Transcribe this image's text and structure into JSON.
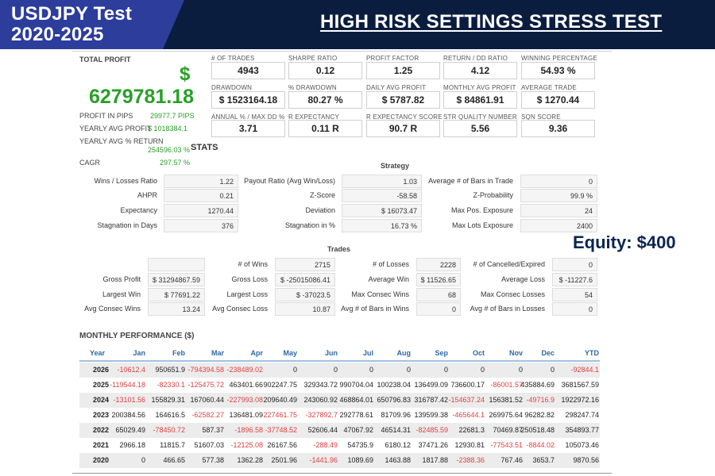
{
  "banner": {
    "tag_line1": "USDJPY Test",
    "tag_line2": "2020-2025",
    "title": "HIGH RISK SETTINGS STRESS TEST"
  },
  "summary": {
    "total_profit_label": "TOTAL PROFIT",
    "currency_symbol": "$",
    "total_profit_value": "6279781.18",
    "profit_in_pips_label": "PROFIT IN PIPS",
    "profit_in_pips_value": "29977.7 PIPS",
    "yearly_avg_profit_label": "YEARLY AVG PROFIT",
    "yearly_avg_profit_value": "$ 1018384.1",
    "yearly_avg_return_label": "YEARLY AVG % RETURN",
    "yearly_avg_return_value": "254596.03 %",
    "cagr_label": "CAGR",
    "cagr_value": "297.57 %",
    "positive_color": "#28a028"
  },
  "metrics": [
    {
      "label": "# OF TRADES",
      "value": "4943"
    },
    {
      "label": "SHARPE RATIO",
      "value": "0.12"
    },
    {
      "label": "PROFIT FACTOR",
      "value": "1.25"
    },
    {
      "label": "RETURN / DD RATIO",
      "value": "4.12"
    },
    {
      "label": "WINNING PERCENTAGE",
      "value": "54.93 %"
    },
    {
      "label": "DRAWDOWN",
      "value": "$ 1523164.18"
    },
    {
      "label": "% DRAWDOWN",
      "value": "80.27 %"
    },
    {
      "label": "DAILY AVG PROFIT",
      "value": "$ 5787.82"
    },
    {
      "label": "MONTHLY AVG PROFIT",
      "value": "$ 84861.91"
    },
    {
      "label": "AVERAGE TRADE",
      "value": "$ 1270.44"
    },
    {
      "label": "ANNUAL % / MAX DD %",
      "value": "3.71"
    },
    {
      "label": "R EXPECTANCY",
      "value": "0.11 R"
    },
    {
      "label": "R EXPECTANCY SCORE",
      "value": "90.7 R"
    },
    {
      "label": "STR QUALITY NUMBER",
      "value": "5.56"
    },
    {
      "label": "SQN SCORE",
      "value": "9.36"
    }
  ],
  "stats": {
    "title": "STATS",
    "strategy_title": "Strategy",
    "strategy_rows": [
      {
        "label": "Wins / Losses Ratio",
        "value": "1.22"
      },
      {
        "label": "Payout Ratio (Avg Win/Loss)",
        "value": "1.03"
      },
      {
        "label": "Average # of Bars in Trade",
        "value": "0"
      },
      {
        "label": "AHPR",
        "value": "0.21"
      },
      {
        "label": "Z-Score",
        "value": "-58.58"
      },
      {
        "label": "Z-Probability",
        "value": "99.9 %"
      },
      {
        "label": "Expectancy",
        "value": "1270.44"
      },
      {
        "label": "Deviation",
        "value": "$ 16073.47"
      },
      {
        "label": "Max Pos. Exposure",
        "value": "24"
      },
      {
        "label": "Stagnation in Days",
        "value": "376"
      },
      {
        "label": "Stagnation in %",
        "value": "16.73 %"
      },
      {
        "label": "Max Lots Exposure",
        "value": "2400"
      }
    ],
    "trades_title": "Trades",
    "trades_rows": [
      {
        "label": "",
        "value": ""
      },
      {
        "label": "# of Wins",
        "value": "2715"
      },
      {
        "label": "# of Losses",
        "value": "2228"
      },
      {
        "label": "# of Cancelled/Expired",
        "value": "0"
      },
      {
        "label": "Gross Profit",
        "value": "$ 31294867.59"
      },
      {
        "label": "Gross Loss",
        "value": "$ -25015086.41"
      },
      {
        "label": "Average Win",
        "value": "$ 11526.65"
      },
      {
        "label": "Average Loss",
        "value": "$ -11227.6"
      },
      {
        "label": "Largest Win",
        "value": "$ 77691.22"
      },
      {
        "label": "Largest Loss",
        "value": "$ -37023.5"
      },
      {
        "label": "Max Consec Wins",
        "value": "68"
      },
      {
        "label": "Max Consec Losses",
        "value": "54"
      },
      {
        "label": "Avg Consec Wins",
        "value": "13.24"
      },
      {
        "label": "Avg Consec Loss",
        "value": "10.87"
      },
      {
        "label": "Avg # of Bars in Wins",
        "value": "0"
      },
      {
        "label": "Avg # of Bars in Losses",
        "value": "0"
      }
    ]
  },
  "equity_label": "Equity: $400",
  "monthly": {
    "title": "MONTHLY PERFORMANCE ($)",
    "headers": [
      "Year",
      "Jan",
      "Feb",
      "Mar",
      "Apr",
      "May",
      "Jun",
      "Jul",
      "Aug",
      "Sep",
      "Oct",
      "Nov",
      "Dec",
      "YTD"
    ],
    "negative_color": "#e04040",
    "header_color": "#2d68a8",
    "rows": [
      [
        "2026",
        "-10612.4",
        "950651.9",
        "-794394.58",
        "-238489.02",
        "0",
        "0",
        "0",
        "0",
        "0",
        "0",
        "0",
        "0",
        "-92844.1"
      ],
      [
        "2025",
        "-119544.18",
        "-82330.1",
        "-125475.72",
        "463401.66",
        "902247.75",
        "329343.72",
        "990704.04",
        "100238.04",
        "136499.09",
        "736600.17",
        "-86001.57",
        "435884.69",
        "3681567.59"
      ],
      [
        "2024",
        "-13101.56",
        "155829.31",
        "167060.44",
        "-227993.08",
        "209640.49",
        "243060.92",
        "468864.01",
        "650796.83",
        "316787.42",
        "-154637.24",
        "156381.52",
        "-49716.9",
        "1922972.16"
      ],
      [
        "2023",
        "200384.56",
        "164616.5",
        "-62582.27",
        "136481.09",
        "-227461.75",
        "-327892.7",
        "292778.61",
        "81709.96",
        "139599.38",
        "-465644.1",
        "269975.64",
        "96282.82",
        "298247.74"
      ],
      [
        "2022",
        "65029.49",
        "-78450.72",
        "587.37",
        "-1896.58",
        "-37748.52",
        "52606.44",
        "47067.92",
        "46514.31",
        "-82485.59",
        "22681.3",
        "70469.87",
        "250518.48",
        "354893.77"
      ],
      [
        "2021",
        "2966.18",
        "11815.7",
        "51607.03",
        "-12125.08",
        "26167.56",
        "-288.49",
        "54735.9",
        "6180.12",
        "37471.26",
        "12930.81",
        "-77543.51",
        "-8844.02",
        "105073.46"
      ],
      [
        "2020",
        "0",
        "466.65",
        "577.38",
        "1362.28",
        "2501.96",
        "-1441.96",
        "1089.69",
        "1463.88",
        "1817.88",
        "-2388.36",
        "767.46",
        "3653.7",
        "9870.56"
      ]
    ]
  }
}
